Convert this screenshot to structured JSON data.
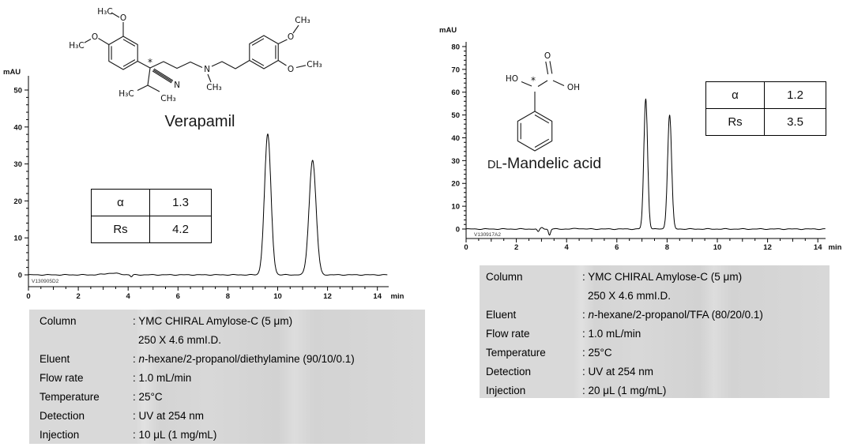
{
  "panels": {
    "left": {
      "compound_name": "Verapamil",
      "trace_id": "V130905D2",
      "results": {
        "alpha_symbol": "α",
        "alpha_value": "1.3",
        "rs_symbol": "Rs",
        "rs_value": "4.2"
      },
      "conditions": {
        "column_label": "Column",
        "column_value": ": YMC CHIRAL Amylose-C (5 μm)",
        "column_value_line2": "250 X 4.6 mmI.D.",
        "eluent_label": "Eluent",
        "eluent_prefix": ": ",
        "eluent_italic": "n",
        "eluent_value": "-hexane/2-propanol/diethylamine (90/10/0.1)",
        "flow_label": "Flow rate",
        "flow_value": ": 1.0 mL/min",
        "temperature_label": "Temperature",
        "temperature_value": ": 25°C",
        "detection_label": "Detection",
        "detection_value": ": UV at 254 nm",
        "injection_label": "Injection",
        "injection_value": ": 10 μL (1 mg/mL)"
      },
      "structure_labels": {
        "methoxy1_ch3": "H₃C",
        "methoxy1_o": "O",
        "methoxy2_ch3": "H₃C",
        "methoxy2_o": "O",
        "stereocenter": "*",
        "nitrile_n": "N",
        "isopropyl_ch3_left": "H₃C",
        "isopropyl_ch3_right": "CH₃",
        "amine_n": "N",
        "n_methyl": "CH₃",
        "methoxy3_o": "O",
        "methoxy3_ch3": "CH₃",
        "methoxy4_o": "O",
        "methoxy4_ch3": "CH₃"
      }
    },
    "right": {
      "compound_prefix": "DL",
      "compound_rest": "-Mandelic acid",
      "trace_id": "V130917A2",
      "results": {
        "alpha_symbol": "α",
        "alpha_value": "1.2",
        "rs_symbol": "Rs",
        "rs_value": "3.5"
      },
      "conditions": {
        "column_label": "Column",
        "column_value": ": YMC CHIRAL Amylose-C (5 μm)",
        "column_value_line2": "250 X 4.6 mmI.D.",
        "eluent_label": "Eluent",
        "eluent_prefix": ": ",
        "eluent_italic": "n",
        "eluent_value": "-hexane/2-propanol/TFA (80/20/0.1)",
        "flow_label": "Flow rate",
        "flow_value": ": 1.0 mL/min",
        "temperature_label": "Temperature",
        "temperature_value": ": 25°C",
        "detection_label": "Detection",
        "detection_value": ": UV at 254 nm",
        "injection_label": "Injection",
        "injection_value": ": 20 μL (1 mg/mL)"
      },
      "structure_labels": {
        "hydroxyl": "HO",
        "stereocenter": "*",
        "carbonyl_o": "O",
        "carboxyl_oh": "OH"
      }
    }
  },
  "chart_data": [
    {
      "type": "line",
      "title": "Verapamil enantiomer separation chromatogram",
      "xlabel": "min",
      "ylabel": "mAU",
      "xlim": [
        0,
        14.5
      ],
      "ylim": [
        0,
        50
      ],
      "xticks": [
        0,
        2,
        4,
        6,
        8,
        10,
        12,
        14
      ],
      "yticks": [
        0,
        10,
        20,
        30,
        40,
        50
      ],
      "grid": false,
      "legend": "none",
      "trace_id": "V130905D2",
      "alpha": 1.3,
      "rs": 4.2,
      "peaks": [
        {
          "rt_min": 9.6,
          "height_mau": 38,
          "sigma_min": 0.13
        },
        {
          "rt_min": 11.4,
          "height_mau": 31,
          "sigma_min": 0.14
        }
      ],
      "baseline_features": [
        {
          "rt_min": 3.35,
          "amp_mau": 0.45,
          "sigma_min": 0.28
        },
        {
          "rt_min": 4.13,
          "amp_mau": -0.55,
          "sigma_min": 0.04
        }
      ]
    },
    {
      "type": "line",
      "title": "DL-Mandelic acid enantiomer separation chromatogram",
      "xlabel": "min",
      "ylabel": "mAU",
      "xlim": [
        0,
        14.5
      ],
      "ylim": [
        0,
        80
      ],
      "xticks": [
        0,
        2,
        4,
        6,
        8,
        10,
        12,
        14
      ],
      "yticks": [
        0,
        10,
        20,
        30,
        40,
        50,
        60,
        70,
        80
      ],
      "grid": false,
      "legend": "none",
      "trace_id": "V130917A2",
      "alpha": 1.2,
      "rs": 3.5,
      "peaks": [
        {
          "rt_min": 7.15,
          "height_mau": 57,
          "sigma_min": 0.075
        },
        {
          "rt_min": 8.1,
          "height_mau": 50,
          "sigma_min": 0.08
        }
      ],
      "baseline_features": [
        {
          "rt_min": 2.87,
          "amp_mau": -1.3,
          "sigma_min": 0.04
        },
        {
          "rt_min": 3.02,
          "amp_mau": 0.7,
          "sigma_min": 0.05
        },
        {
          "rt_min": 3.32,
          "amp_mau": -2.6,
          "sigma_min": 0.04
        },
        {
          "rt_min": 4.45,
          "amp_mau": 0.3,
          "sigma_min": 0.12
        }
      ]
    }
  ]
}
